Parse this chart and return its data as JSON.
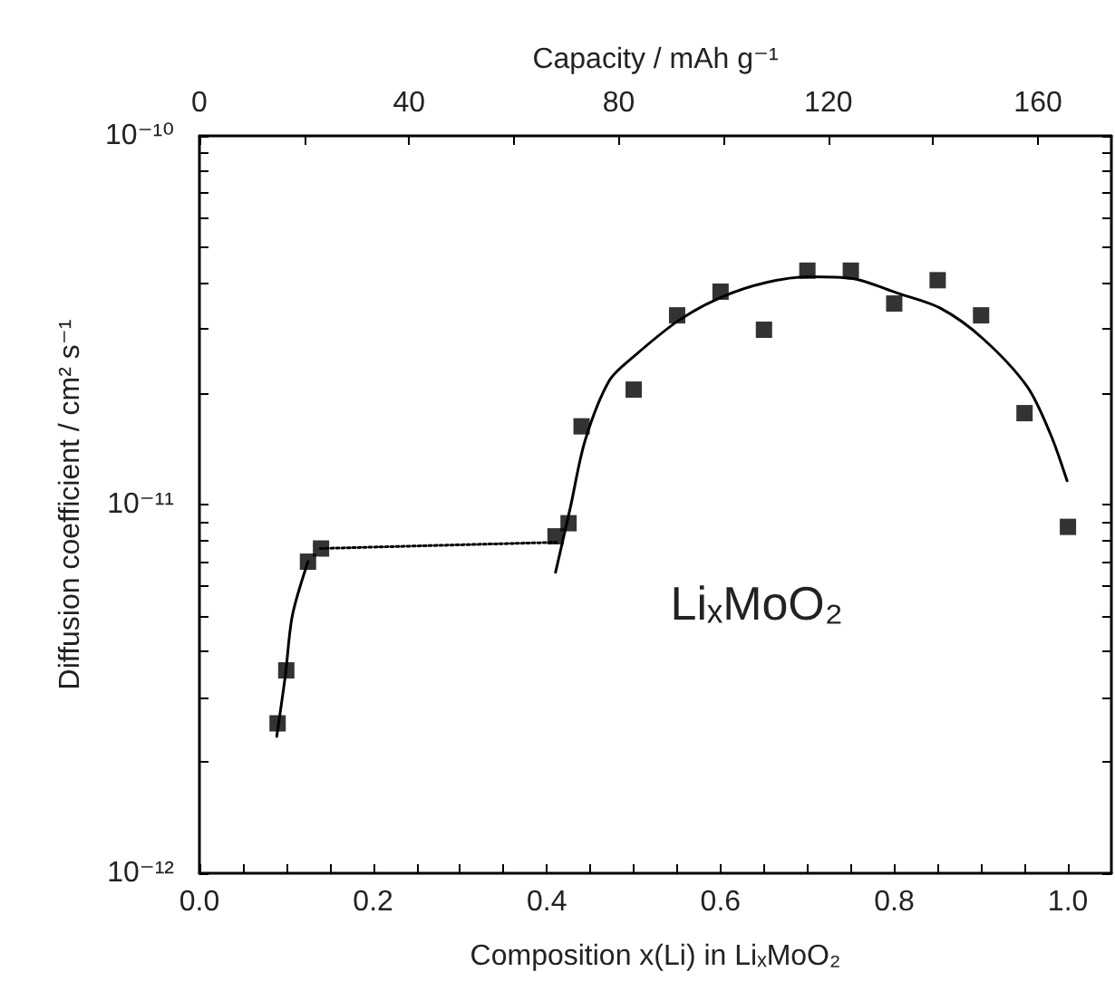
{
  "chart_data": {
    "type": "scatter",
    "xlabel": "Composition x(Li) in LiₓMoO₂",
    "x2label": "Capacity / mAh g⁻¹",
    "ylabel": "Diffusion coefficient / cm² s⁻¹",
    "annotations": [
      "LiₓMoO₂"
    ],
    "xlim": [
      0,
      1.05
    ],
    "xticks": [
      {
        "value": 0,
        "label": "0.0"
      },
      {
        "value": 0.05,
        "label": null
      },
      {
        "value": 0.1,
        "label": null
      },
      {
        "value": 0.15,
        "label": null
      },
      {
        "value": 0.2,
        "label": "0.2"
      },
      {
        "value": 0.25,
        "label": null
      },
      {
        "value": 0.3,
        "label": null
      },
      {
        "value": 0.35,
        "label": null
      },
      {
        "value": 0.4,
        "label": "0.4"
      },
      {
        "value": 0.45,
        "label": null
      },
      {
        "value": 0.5,
        "label": null
      },
      {
        "value": 0.55,
        "label": null
      },
      {
        "value": 0.6,
        "label": "0.6"
      },
      {
        "value": 0.65,
        "label": null
      },
      {
        "value": 0.7,
        "label": null
      },
      {
        "value": 0.75,
        "label": null
      },
      {
        "value": 0.8,
        "label": "0.8"
      },
      {
        "value": 0.85,
        "label": null
      },
      {
        "value": 0.9,
        "label": null
      },
      {
        "value": 0.95,
        "label": null
      },
      {
        "value": 1,
        "label": "1.0"
      }
    ],
    "x2lim": [
      0,
      174
    ],
    "x2ticks": [
      0,
      {
        "value": 20,
        "label": null
      },
      40,
      {
        "value": 60,
        "label": null
      },
      80,
      {
        "value": 100,
        "label": null
      },
      120,
      {
        "value": 140,
        "label": null
      },
      160
    ],
    "log": "y",
    "ylim": [
      1e-12,
      1e-10
    ],
    "yticks": [
      {
        "value": 1e-12,
        "label": "10⁻¹²"
      },
      {
        "value": 2e-12,
        "label": null
      },
      {
        "value": 3e-12,
        "label": null
      },
      {
        "value": 4e-12,
        "label": null
      },
      {
        "value": 5e-12,
        "label": null
      },
      {
        "value": 6e-12,
        "label": null
      },
      {
        "value": 7e-12,
        "label": null
      },
      {
        "value": 8e-12,
        "label": null
      },
      {
        "value": 9e-12,
        "label": null
      },
      {
        "value": 1e-11,
        "label": "10⁻¹¹"
      },
      {
        "value": 2e-11,
        "label": null
      },
      {
        "value": 3e-11,
        "label": null
      },
      {
        "value": 4e-11,
        "label": null
      },
      {
        "value": 5e-11,
        "label": null
      },
      {
        "value": 6e-11,
        "label": null
      },
      {
        "value": 7e-11,
        "label": null
      },
      {
        "value": 8e-11,
        "label": null
      },
      {
        "value": 9e-11,
        "label": null
      },
      {
        "value": 1e-10,
        "label": "10⁻¹⁰"
      }
    ],
    "grid": false,
    "series": [
      {
        "color": "#000000",
        "marker": "square",
        "x": [
          0.09,
          0.1,
          0.125,
          0.14,
          0.41,
          0.425,
          0.44,
          0.5,
          0.55,
          0.6,
          0.65,
          0.7,
          0.75,
          0.8,
          0.85,
          0.9,
          0.95,
          1.0
        ],
        "values": [
          2.55e-12,
          3.55e-12,
          7e-12,
          7.6e-12,
          8.2e-12,
          8.9e-12,
          1.63e-11,
          2.05e-11,
          3.26e-11,
          3.78e-11,
          2.98e-11,
          4.31e-11,
          4.31e-11,
          3.51e-11,
          4.06e-11,
          3.26e-11,
          1.77e-11,
          8.7e-12
        ]
      },
      {
        "type": "line",
        "color": "#000000",
        "marker": "none",
        "line_style": "solid",
        "x": [
          0.089,
          0.099,
          0.107,
          0.125
        ],
        "values": [
          2.35e-12,
          3.45e-12,
          5e-12,
          7e-12
        ]
      },
      {
        "type": "line",
        "color": "#000000",
        "marker": "none",
        "line_style": "dotted",
        "x": [
          0.139,
          0.411
        ],
        "values": [
          7.6e-12,
          7.9e-12
        ]
      },
      {
        "type": "line",
        "color": "#000000",
        "marker": "none",
        "line_style": "solid",
        "x": [
          0.41,
          0.427,
          0.444,
          0.472,
          0.5,
          0.552,
          0.602,
          0.652,
          0.702,
          0.752,
          0.803,
          0.853,
          0.902,
          0.953,
          0.98,
          0.999
        ],
        "values": [
          6.55e-12,
          9.8e-12,
          1.49e-11,
          2.17e-11,
          2.52e-11,
          3.16e-11,
          3.66e-11,
          4e-11,
          4.15e-11,
          4.1e-11,
          3.75e-11,
          3.41e-11,
          2.82e-11,
          2.09e-11,
          1.55e-11,
          1.16e-11
        ]
      }
    ]
  }
}
